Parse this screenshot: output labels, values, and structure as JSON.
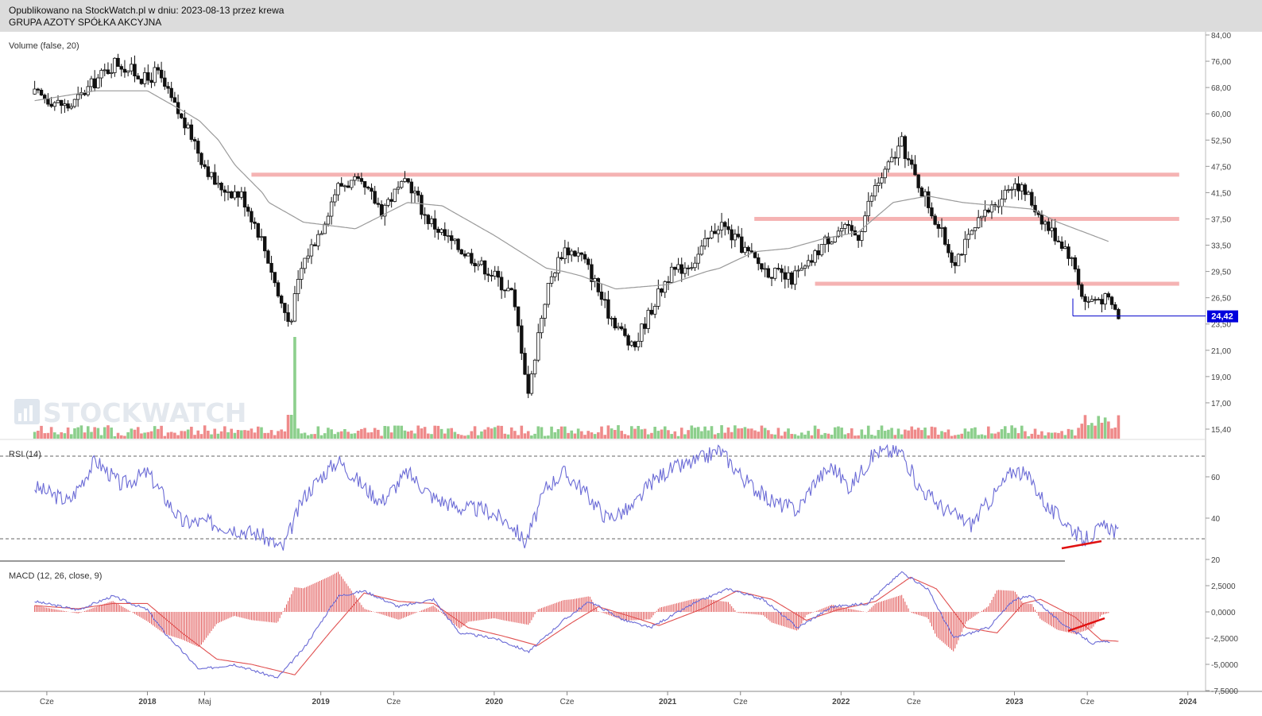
{
  "header": {
    "published": "Opublikowano na StockWatch.pl w dniu: 2023-08-13 przez krewa",
    "instrument": "GRUPA AZOTY SPÓŁKA AKCYJNA"
  },
  "watermark": "STOCKWATCH",
  "colors": {
    "candle": "#111111",
    "vol_up": "#8ccf8c",
    "vol_down": "#ef8a8a",
    "ma_line": "#999999",
    "resistance": "#f5b3b3",
    "indicator_blue": "#6b6bd6",
    "indicator_red": "#e05050",
    "trend_red": "#e01010",
    "price_tag": "#0000dd"
  },
  "chart_data": {
    "type": "candlestick",
    "price_panel": {
      "label": "Volume (false, 20)",
      "y_ticks": [
        "84,00",
        "76,00",
        "68,00",
        "60,00",
        "52,50",
        "47,50",
        "41,50",
        "37,50",
        "33,50",
        "29,50",
        "26,50",
        "23,50",
        "21,00",
        "19,00",
        "17,00",
        "15,40"
      ],
      "last_price": "24,42",
      "support_resistance_levels": [
        45.6,
        37.5,
        28.1
      ],
      "close_path": [
        [
          2017.35,
          66
        ],
        [
          2017.55,
          62
        ],
        [
          2017.7,
          70
        ],
        [
          2017.82,
          76
        ],
        [
          2018.0,
          70
        ],
        [
          2018.05,
          73
        ],
        [
          2018.1,
          68
        ],
        [
          2018.2,
          58
        ],
        [
          2018.3,
          50
        ],
        [
          2018.4,
          43
        ],
        [
          2018.55,
          41
        ],
        [
          2018.65,
          35
        ],
        [
          2018.75,
          27
        ],
        [
          2018.82,
          23.5
        ],
        [
          2018.9,
          31
        ],
        [
          2019.0,
          36
        ],
        [
          2019.1,
          43
        ],
        [
          2019.2,
          44
        ],
        [
          2019.35,
          39
        ],
        [
          2019.5,
          44
        ],
        [
          2019.6,
          38
        ],
        [
          2019.75,
          34
        ],
        [
          2019.9,
          31
        ],
        [
          2020.0,
          29
        ],
        [
          2020.1,
          27
        ],
        [
          2020.15,
          22
        ],
        [
          2020.2,
          17.5
        ],
        [
          2020.3,
          27
        ],
        [
          2020.4,
          33
        ],
        [
          2020.5,
          32
        ],
        [
          2020.65,
          25
        ],
        [
          2020.8,
          21
        ],
        [
          2020.9,
          25
        ],
        [
          2021.0,
          29
        ],
        [
          2021.15,
          31
        ],
        [
          2021.3,
          37
        ],
        [
          2021.4,
          34
        ],
        [
          2021.55,
          30
        ],
        [
          2021.7,
          28.5
        ],
        [
          2021.8,
          30
        ],
        [
          2021.9,
          34
        ],
        [
          2022.0,
          36
        ],
        [
          2022.1,
          35
        ],
        [
          2022.2,
          43
        ],
        [
          2022.35,
          52
        ],
        [
          2022.45,
          43
        ],
        [
          2022.55,
          37
        ],
        [
          2022.65,
          31
        ],
        [
          2022.8,
          37
        ],
        [
          2022.95,
          42
        ],
        [
          2023.0,
          44
        ],
        [
          2023.1,
          40
        ],
        [
          2023.2,
          36
        ],
        [
          2023.3,
          33
        ],
        [
          2023.35,
          30
        ],
        [
          2023.4,
          26
        ],
        [
          2023.5,
          26.5
        ],
        [
          2023.55,
          26
        ],
        [
          2023.6,
          24.42
        ]
      ],
      "ma_path": [
        [
          2017.35,
          64
        ],
        [
          2017.7,
          67
        ],
        [
          2018.0,
          67
        ],
        [
          2018.3,
          58
        ],
        [
          2018.5,
          48
        ],
        [
          2018.7,
          40
        ],
        [
          2018.9,
          37
        ],
        [
          2019.2,
          36
        ],
        [
          2019.5,
          40
        ],
        [
          2019.7,
          39.5
        ],
        [
          2020.0,
          35
        ],
        [
          2020.3,
          30
        ],
        [
          2020.5,
          29
        ],
        [
          2020.7,
          27.5
        ],
        [
          2021.0,
          28
        ],
        [
          2021.3,
          30
        ],
        [
          2021.5,
          32.5
        ],
        [
          2021.7,
          33
        ],
        [
          2021.9,
          34.5
        ],
        [
          2022.1,
          35.5
        ],
        [
          2022.3,
          40
        ],
        [
          2022.5,
          41
        ],
        [
          2022.7,
          40
        ],
        [
          2022.9,
          39.5
        ],
        [
          2023.1,
          39
        ],
        [
          2023.25,
          37
        ],
        [
          2023.4,
          35.5
        ],
        [
          2023.55,
          34
        ]
      ]
    },
    "rsi_panel": {
      "label": "RSI (14)",
      "y_ticks": [
        "60",
        "40",
        "20"
      ],
      "levels": [
        70,
        30
      ],
      "path": [
        [
          2017.35,
          55
        ],
        [
          2017.55,
          48
        ],
        [
          2017.7,
          68
        ],
        [
          2017.85,
          56
        ],
        [
          2018.0,
          62
        ],
        [
          2018.1,
          50
        ],
        [
          2018.2,
          38
        ],
        [
          2018.35,
          38
        ],
        [
          2018.5,
          35
        ],
        [
          2018.65,
          32
        ],
        [
          2018.78,
          25
        ],
        [
          2018.9,
          50
        ],
        [
          2019.0,
          60
        ],
        [
          2019.1,
          68
        ],
        [
          2019.25,
          55
        ],
        [
          2019.35,
          48
        ],
        [
          2019.5,
          62
        ],
        [
          2019.65,
          50
        ],
        [
          2019.8,
          45
        ],
        [
          2019.95,
          44
        ],
        [
          2020.1,
          37
        ],
        [
          2020.18,
          28
        ],
        [
          2020.3,
          55
        ],
        [
          2020.4,
          62
        ],
        [
          2020.5,
          55
        ],
        [
          2020.65,
          40
        ],
        [
          2020.8,
          45
        ],
        [
          2020.9,
          57
        ],
        [
          2021.0,
          63
        ],
        [
          2021.15,
          67
        ],
        [
          2021.3,
          73
        ],
        [
          2021.45,
          58
        ],
        [
          2021.6,
          48
        ],
        [
          2021.75,
          44
        ],
        [
          2021.85,
          58
        ],
        [
          2021.95,
          65
        ],
        [
          2022.05,
          55
        ],
        [
          2022.2,
          72
        ],
        [
          2022.35,
          72
        ],
        [
          2022.45,
          55
        ],
        [
          2022.6,
          44
        ],
        [
          2022.75,
          37
        ],
        [
          2022.9,
          53
        ],
        [
          2023.0,
          64
        ],
        [
          2023.1,
          58
        ],
        [
          2023.2,
          44
        ],
        [
          2023.3,
          38
        ],
        [
          2023.4,
          29
        ],
        [
          2023.5,
          35
        ],
        [
          2023.55,
          36
        ],
        [
          2023.6,
          32
        ]
      ]
    },
    "macd_panel": {
      "label": "MACD (12, 26, close, 9)",
      "y_ticks": [
        "2,5000",
        "0,0000",
        "-2,5000",
        "-5,0000",
        "-7,5000"
      ],
      "macd_path": [
        [
          2017.35,
          1.0
        ],
        [
          2017.6,
          0.2
        ],
        [
          2017.8,
          1.5
        ],
        [
          2018.0,
          0.2
        ],
        [
          2018.1,
          -2.0
        ],
        [
          2018.3,
          -5.5
        ],
        [
          2018.5,
          -5.0
        ],
        [
          2018.75,
          -6.3
        ],
        [
          2018.9,
          -3.5
        ],
        [
          2019.1,
          1.5
        ],
        [
          2019.25,
          2.0
        ],
        [
          2019.45,
          0.5
        ],
        [
          2019.65,
          1.2
        ],
        [
          2019.8,
          -2.0
        ],
        [
          2020.0,
          -2.5
        ],
        [
          2020.2,
          -3.8
        ],
        [
          2020.4,
          -0.8
        ],
        [
          2020.55,
          1.0
        ],
        [
          2020.75,
          -0.8
        ],
        [
          2020.9,
          -1.5
        ],
        [
          2021.15,
          0.8
        ],
        [
          2021.35,
          2.2
        ],
        [
          2021.55,
          1.2
        ],
        [
          2021.75,
          -1.5
        ],
        [
          2021.95,
          0.5
        ],
        [
          2022.15,
          0.8
        ],
        [
          2022.35,
          3.8
        ],
        [
          2022.5,
          2.2
        ],
        [
          2022.65,
          -2.5
        ],
        [
          2022.85,
          -1.5
        ],
        [
          2023.0,
          1.2
        ],
        [
          2023.1,
          1.5
        ],
        [
          2023.25,
          -0.8
        ],
        [
          2023.45,
          -3.0
        ],
        [
          2023.55,
          -2.8
        ]
      ],
      "signal_path": [
        [
          2017.35,
          0.6
        ],
        [
          2017.6,
          0.3
        ],
        [
          2017.8,
          0.8
        ],
        [
          2018.0,
          0.8
        ],
        [
          2018.2,
          -2.0
        ],
        [
          2018.4,
          -4.5
        ],
        [
          2018.6,
          -5.0
        ],
        [
          2018.85,
          -6.0
        ],
        [
          2019.05,
          -2.0
        ],
        [
          2019.25,
          1.8
        ],
        [
          2019.45,
          1.0
        ],
        [
          2019.65,
          0.8
        ],
        [
          2019.85,
          -1.5
        ],
        [
          2020.05,
          -2.3
        ],
        [
          2020.25,
          -3.2
        ],
        [
          2020.45,
          -1.0
        ],
        [
          2020.6,
          0.5
        ],
        [
          2020.8,
          -0.5
        ],
        [
          2020.95,
          -1.3
        ],
        [
          2021.2,
          0.3
        ],
        [
          2021.4,
          2.0
        ],
        [
          2021.6,
          1.2
        ],
        [
          2021.8,
          -0.8
        ],
        [
          2021.98,
          0.2
        ],
        [
          2022.2,
          1.0
        ],
        [
          2022.4,
          3.3
        ],
        [
          2022.55,
          2.2
        ],
        [
          2022.72,
          -1.5
        ],
        [
          2022.9,
          -2.0
        ],
        [
          2023.05,
          0.8
        ],
        [
          2023.15,
          1.2
        ],
        [
          2023.35,
          -0.5
        ],
        [
          2023.5,
          -2.7
        ],
        [
          2023.6,
          -2.8
        ]
      ]
    },
    "x_axis": {
      "start": 2017.15,
      "end": 2024.1,
      "labels": [
        {
          "t": 2017.42,
          "label": "Cze"
        },
        {
          "t": 2018.0,
          "label": "2018"
        },
        {
          "t": 2018.33,
          "label": "Maj"
        },
        {
          "t": 2019.0,
          "label": "2019"
        },
        {
          "t": 2019.42,
          "label": "Cze"
        },
        {
          "t": 2020.0,
          "label": "2020"
        },
        {
          "t": 2020.42,
          "label": "Cze"
        },
        {
          "t": 2021.0,
          "label": "2021"
        },
        {
          "t": 2021.42,
          "label": "Cze"
        },
        {
          "t": 2022.0,
          "label": "2022"
        },
        {
          "t": 2022.42,
          "label": "Cze"
        },
        {
          "t": 2023.0,
          "label": "2023"
        },
        {
          "t": 2023.42,
          "label": "Cze"
        },
        {
          "t": 2024.0,
          "label": "2024"
        }
      ]
    }
  }
}
